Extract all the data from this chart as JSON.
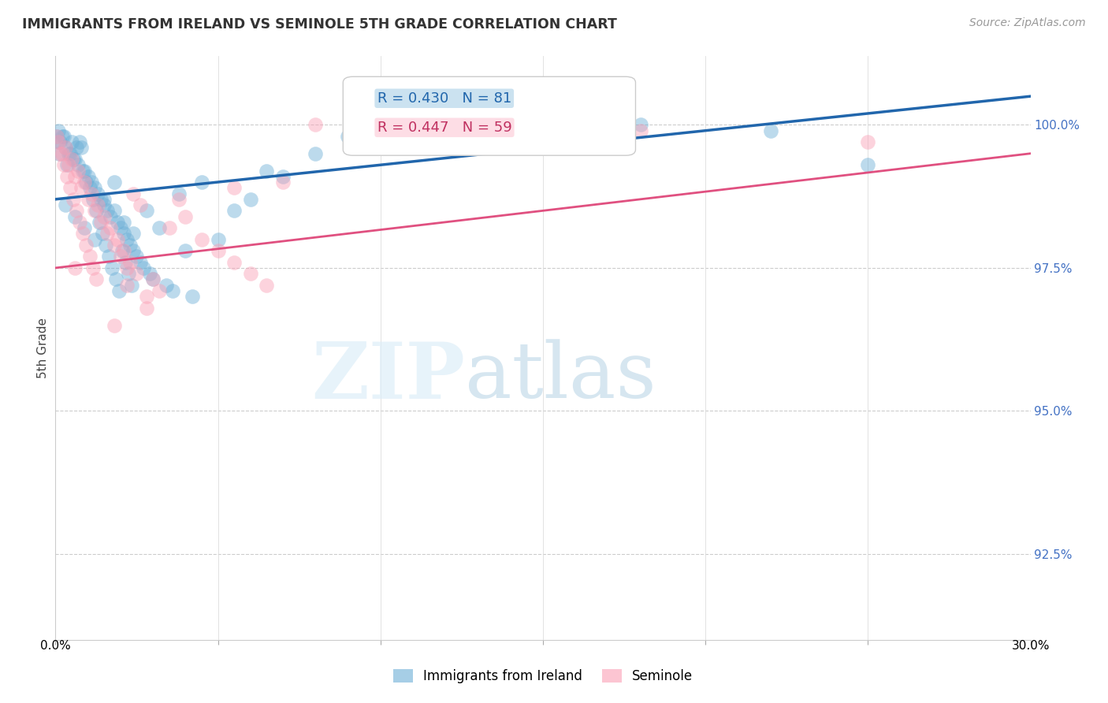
{
  "title": "IMMIGRANTS FROM IRELAND VS SEMINOLE 5TH GRADE CORRELATION CHART",
  "source": "Source: ZipAtlas.com",
  "ylabel": "5th Grade",
  "xmin": 0.0,
  "xmax": 30.0,
  "ymin": 91.0,
  "ymax": 101.2,
  "blue_R": 0.43,
  "blue_N": 81,
  "pink_R": 0.447,
  "pink_N": 59,
  "blue_color": "#6baed6",
  "pink_color": "#fa9fb5",
  "blue_line_color": "#2166ac",
  "pink_line_color": "#e05080",
  "legend_label_blue": "Immigrants from Ireland",
  "legend_label_pink": "Seminole",
  "ytick_positions": [
    92.5,
    95.0,
    97.5,
    100.0
  ],
  "ytick_labels": [
    "92.5%",
    "95.0%",
    "97.5%",
    "100.0%"
  ],
  "blue_scatter_x": [
    0.2,
    0.3,
    0.4,
    0.5,
    0.6,
    0.7,
    0.8,
    0.9,
    1.0,
    1.1,
    1.2,
    1.3,
    1.4,
    1.5,
    1.6,
    1.7,
    1.8,
    1.9,
    2.0,
    2.1,
    2.2,
    2.3,
    2.4,
    2.5,
    2.6,
    2.7,
    2.8,
    2.9,
    3.0,
    3.2,
    3.4,
    3.6,
    3.8,
    4.0,
    4.2,
    4.5,
    5.0,
    5.5,
    6.0,
    6.5,
    7.0,
    8.0,
    0.1,
    0.15,
    0.25,
    0.35,
    0.45,
    0.55,
    0.65,
    0.75,
    0.85,
    0.95,
    1.05,
    1.15,
    1.25,
    1.35,
    1.45,
    1.55,
    1.65,
    1.75,
    1.85,
    1.95,
    2.05,
    2.15,
    2.25,
    2.35,
    0.05,
    0.08,
    0.12,
    9.0,
    18.0,
    22.0,
    25.0,
    0.3,
    0.6,
    0.9,
    1.2,
    1.5,
    1.8,
    2.1,
    2.4
  ],
  "blue_scatter_y": [
    99.8,
    99.6,
    99.5,
    99.7,
    99.4,
    99.3,
    99.6,
    99.2,
    99.1,
    99.0,
    98.9,
    98.8,
    98.7,
    98.6,
    98.5,
    98.4,
    99.0,
    98.3,
    98.2,
    98.1,
    98.0,
    97.9,
    97.8,
    97.7,
    97.6,
    97.5,
    98.5,
    97.4,
    97.3,
    98.2,
    97.2,
    97.1,
    98.8,
    97.8,
    97.0,
    99.0,
    98.0,
    98.5,
    98.7,
    99.2,
    99.1,
    99.5,
    99.9,
    99.7,
    99.8,
    99.3,
    99.5,
    99.4,
    99.6,
    99.7,
    99.2,
    99.0,
    98.9,
    98.7,
    98.5,
    98.3,
    98.1,
    97.9,
    97.7,
    97.5,
    97.3,
    97.1,
    97.8,
    97.6,
    97.4,
    97.2,
    99.8,
    99.7,
    99.5,
    99.8,
    100.0,
    99.9,
    99.3,
    98.6,
    98.4,
    98.2,
    98.0,
    98.7,
    98.5,
    98.3,
    98.1
  ],
  "pink_scatter_x": [
    0.2,
    0.4,
    0.6,
    0.8,
    1.0,
    1.2,
    1.4,
    1.6,
    1.8,
    2.0,
    2.2,
    2.4,
    2.6,
    2.8,
    3.0,
    3.5,
    4.0,
    4.5,
    5.0,
    5.5,
    6.0,
    6.5,
    7.0,
    0.1,
    0.3,
    0.5,
    0.7,
    0.9,
    1.1,
    1.3,
    1.5,
    1.7,
    1.9,
    2.1,
    2.3,
    2.5,
    0.05,
    0.15,
    0.25,
    8.0,
    18.0,
    25.0,
    0.35,
    0.45,
    0.55,
    0.65,
    0.75,
    0.85,
    0.95,
    1.05,
    1.15,
    1.25,
    2.8,
    3.2,
    0.6,
    1.8,
    2.2,
    3.8,
    5.5
  ],
  "pink_scatter_y": [
    99.5,
    99.3,
    99.1,
    98.9,
    98.7,
    98.5,
    98.3,
    98.1,
    97.9,
    97.7,
    97.5,
    98.8,
    98.6,
    97.0,
    97.3,
    98.2,
    98.4,
    98.0,
    97.8,
    97.6,
    97.4,
    97.2,
    99.0,
    99.7,
    99.6,
    99.4,
    99.2,
    99.0,
    98.8,
    98.6,
    98.4,
    98.2,
    98.0,
    97.8,
    97.6,
    97.4,
    99.8,
    99.5,
    99.3,
    100.0,
    99.9,
    99.7,
    99.1,
    98.9,
    98.7,
    98.5,
    98.3,
    98.1,
    97.9,
    97.7,
    97.5,
    97.3,
    96.8,
    97.1,
    97.5,
    96.5,
    97.2,
    98.7,
    98.9
  ],
  "blue_line_x0": 0.0,
  "blue_line_y0": 98.7,
  "blue_line_x1": 30.0,
  "blue_line_y1": 100.5,
  "pink_line_x0": 0.0,
  "pink_line_y0": 97.5,
  "pink_line_x1": 30.0,
  "pink_line_y1": 99.5
}
